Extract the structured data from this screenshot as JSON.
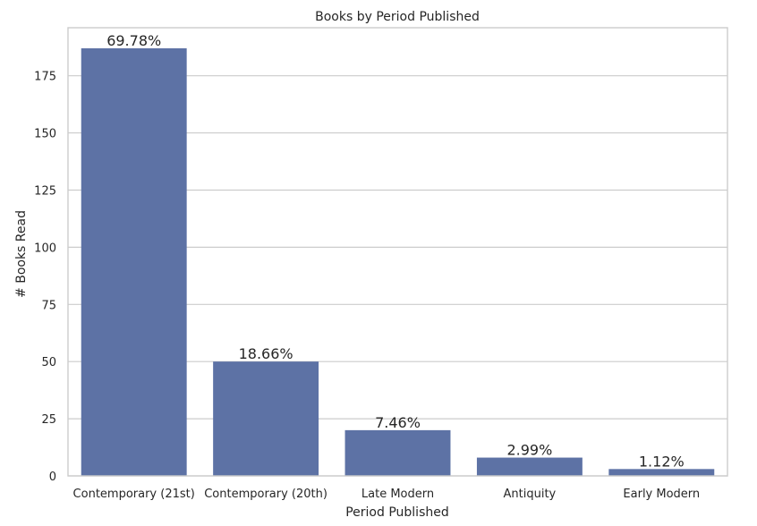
{
  "chart_data": {
    "type": "bar",
    "title": "Books by Period Published",
    "xlabel": "Period Published",
    "ylabel": "# Books Read",
    "categories": [
      "Contemporary (21st)",
      "Contemporary (20th)",
      "Late Modern",
      "Antiquity",
      "Early Modern"
    ],
    "values": [
      187,
      50,
      20,
      8,
      3
    ],
    "bar_labels": [
      "69.78%",
      "18.66%",
      "7.46%",
      "2.99%",
      "1.12%"
    ],
    "ylim": [
      0,
      196
    ],
    "yticks": [
      0,
      25,
      50,
      75,
      100,
      125,
      150,
      175
    ],
    "grid": true,
    "colors": {
      "bar": "#5d72a5",
      "grid": "#cccccc",
      "text": "#262626",
      "background": "#ffffff"
    }
  }
}
